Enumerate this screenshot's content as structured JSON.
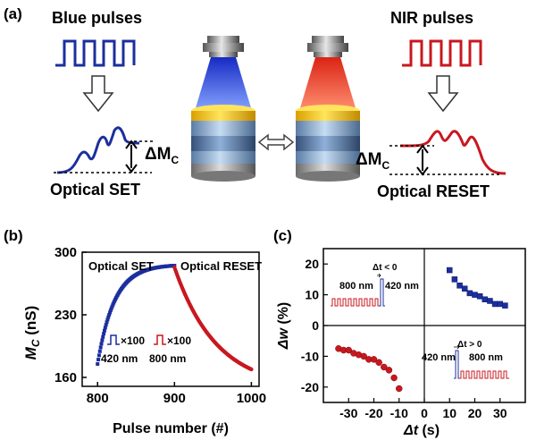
{
  "panel_a": {
    "label": "(a)",
    "blue_title": "Blue pulses",
    "nir_title": "NIR pulses",
    "delta_left_symbol": "ΔM",
    "delta_left_sub": "C",
    "delta_right_symbol": "ΔM",
    "delta_right_sub": "C",
    "set_label": "Optical SET",
    "reset_label": "Optical RESET",
    "colors": {
      "blue": "#1c2f9e",
      "red": "#c8181f",
      "blue_beam": "#2d4fe0",
      "red_beam": "#f0321e"
    }
  },
  "panel_b": {
    "label": "(b)",
    "ylabel_main": "M",
    "ylabel_sub": "C",
    "ylabel_unit": " (nS)",
    "set_annot": "Optical SET",
    "reset_annot": "Optical RESET",
    "legend_blue_mult": "×100",
    "legend_red_mult": "×100",
    "legend_blue_nm": "420 nm",
    "legend_red_nm": "800 nm"
  },
  "panel_c": {
    "label": "(c)",
    "ylabel_main": "Δw",
    "ylabel_unit": " (%)",
    "xlabel_main": "Δt",
    "xlabel_unit": " (s)",
    "inset_left_cond": "Δt < 0",
    "inset_left_800": "800 nm",
    "inset_left_420": "420 nm",
    "inset_right_cond": "Δt > 0",
    "inset_right_420": "420 nm",
    "inset_right_800": "800 nm"
  },
  "chart_data": [
    {
      "type": "scatter",
      "panel": "b",
      "xlabel": "Pulse number (#)",
      "ylabel": "MC (nS)",
      "xlim": [
        780,
        1010
      ],
      "ylim": [
        150,
        300
      ],
      "xticks": [
        800,
        900,
        1000
      ],
      "yticks": [
        160,
        230,
        300
      ],
      "series": [
        {
          "name": "420 nm (Optical SET)",
          "color": "#1c2f9e",
          "x_start": 800,
          "x_end": 900,
          "y_start": 175,
          "y_end": 285,
          "shape": "saturating-rise"
        },
        {
          "name": "800 nm (Optical RESET)",
          "color": "#c8181f",
          "x_start": 900,
          "x_end": 1000,
          "y_start": 283,
          "y_end": 169,
          "shape": "decay"
        }
      ]
    },
    {
      "type": "scatter",
      "panel": "c",
      "xlabel": "Δt (s)",
      "ylabel": "Δw (%)",
      "xlim": [
        -40,
        40
      ],
      "ylim": [
        -25,
        25
      ],
      "xticks": [
        -30,
        -20,
        -10,
        0,
        10,
        20,
        30
      ],
      "xtick_labels": [
        "-30",
        "-20",
        "-10",
        "0",
        "10",
        "20",
        "30"
      ],
      "yticks": [
        -20,
        -10,
        0,
        10,
        20
      ],
      "series": [
        {
          "name": "Δt < 0",
          "color": "#c8181f",
          "x": [
            -34,
            -32,
            -30,
            -28,
            -26,
            -24,
            -22,
            -20,
            -18,
            -16,
            -14,
            -12,
            -10
          ],
          "y": [
            -7.5,
            -8,
            -8,
            -9,
            -9.5,
            -10,
            -11,
            -11,
            -12,
            -13.5,
            -14.5,
            -17,
            -20.5
          ]
        },
        {
          "name": "Δt > 0",
          "color": "#1c2f9e",
          "x": [
            10,
            12,
            14,
            16,
            18,
            20,
            22,
            24,
            26,
            28,
            30,
            32
          ],
          "y": [
            18,
            15,
            13,
            12,
            10.5,
            10,
            9.5,
            8.5,
            8,
            7,
            7,
            6.5
          ]
        }
      ]
    }
  ]
}
